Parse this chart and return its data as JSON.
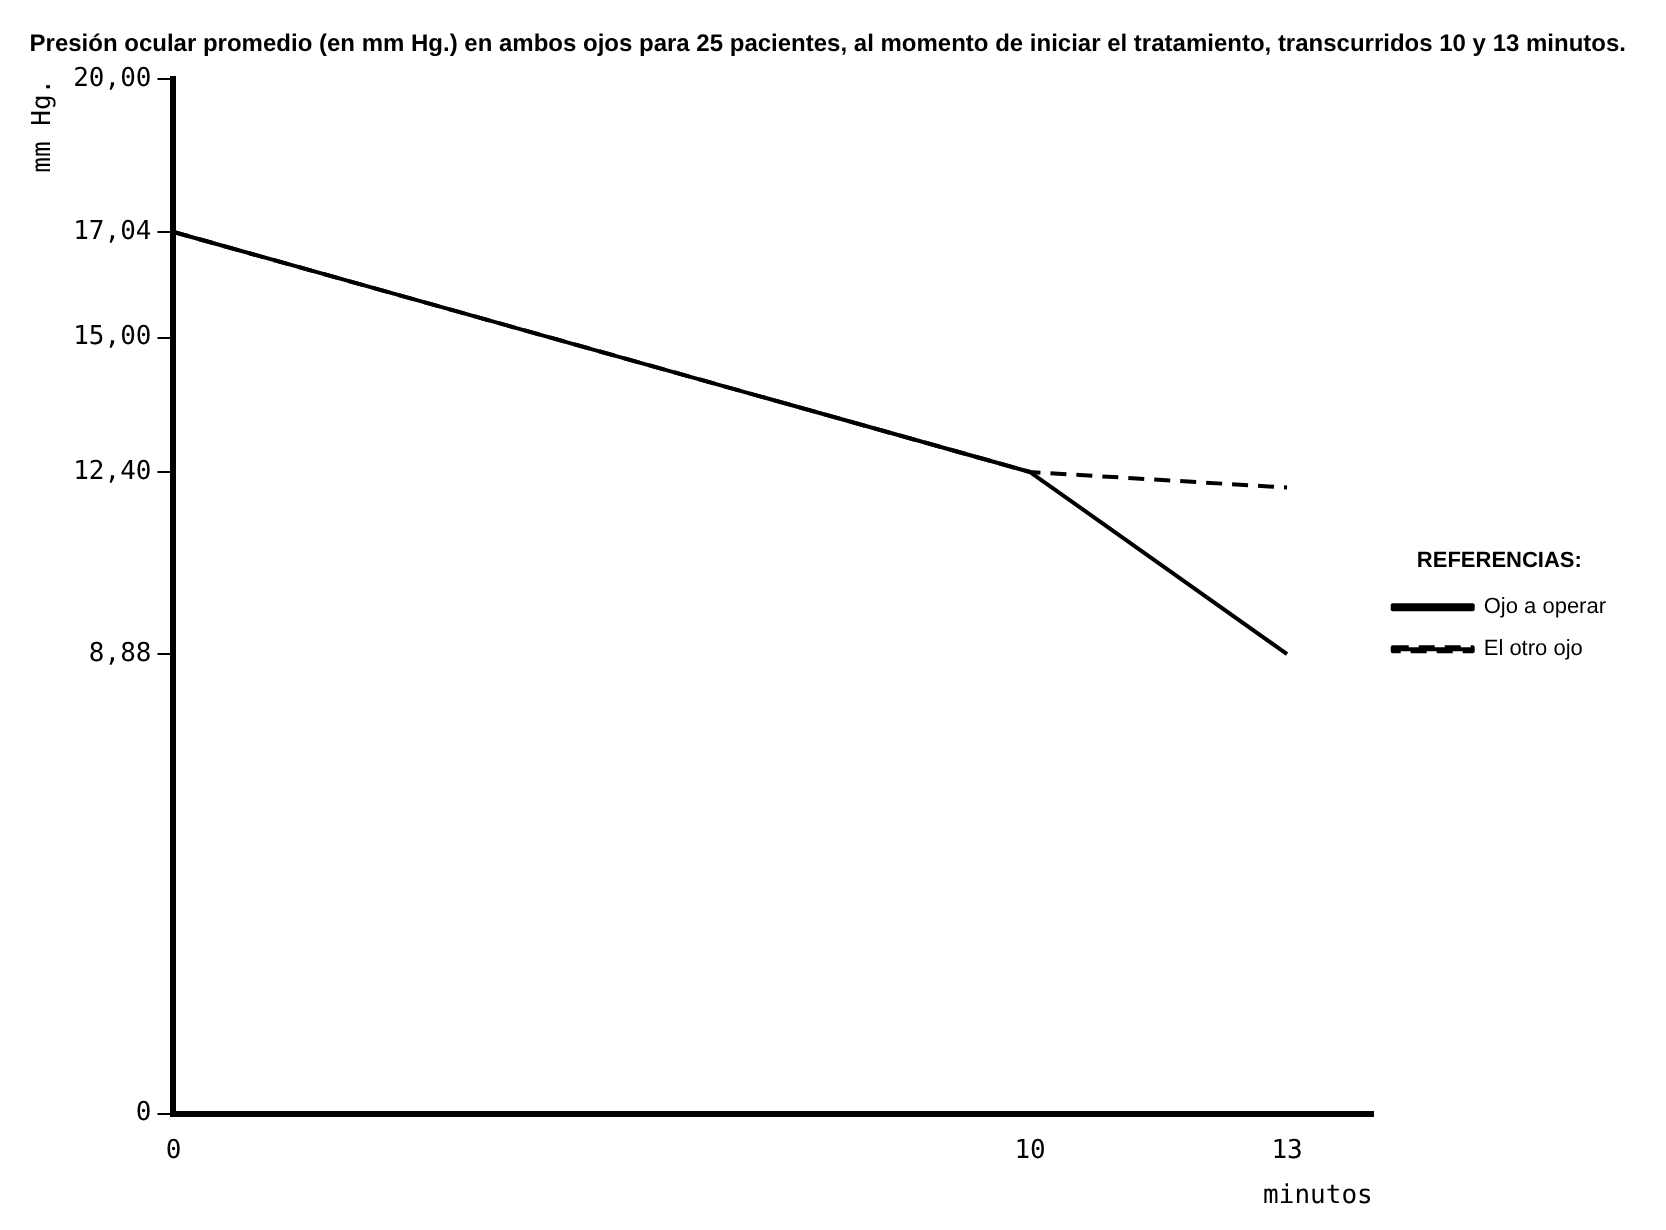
{
  "chart_data": {
    "type": "line",
    "title": "Presión ocular promedio (en mm Hg.) en ambos ojos para 25 pacientes, al momento de iniciar el tratamiento, transcurridos 10 y 13 minutos.",
    "xlabel": "minutos",
    "ylabel": "mm Hg.",
    "legend_title": "REFERENCIAS:",
    "x": [
      0,
      10,
      13
    ],
    "series": [
      {
        "name": "Ojo a operar",
        "color": "#000000",
        "values": [
          17.04,
          12.4,
          8.88
        ],
        "line_style": "solid"
      },
      {
        "name": "El otro ojo",
        "color": "#000000",
        "values": [
          17.04,
          12.4,
          12.1
        ],
        "line_style": "dashed"
      }
    ],
    "xlim": [
      0,
      14
    ],
    "xticks": [
      0,
      10,
      13
    ],
    "ylim": [
      0,
      20
    ],
    "yticks": [
      0,
      {
        "value": 8.88,
        "label": "8,88"
      },
      {
        "value": 12.4,
        "label": "12,40"
      },
      {
        "value": 15,
        "label": "15,00"
      },
      {
        "value": 17.04,
        "label": "17,04"
      },
      {
        "value": 20,
        "label": "20,00"
      }
    ],
    "grid": false,
    "legend": "right",
    "marker": "none"
  }
}
